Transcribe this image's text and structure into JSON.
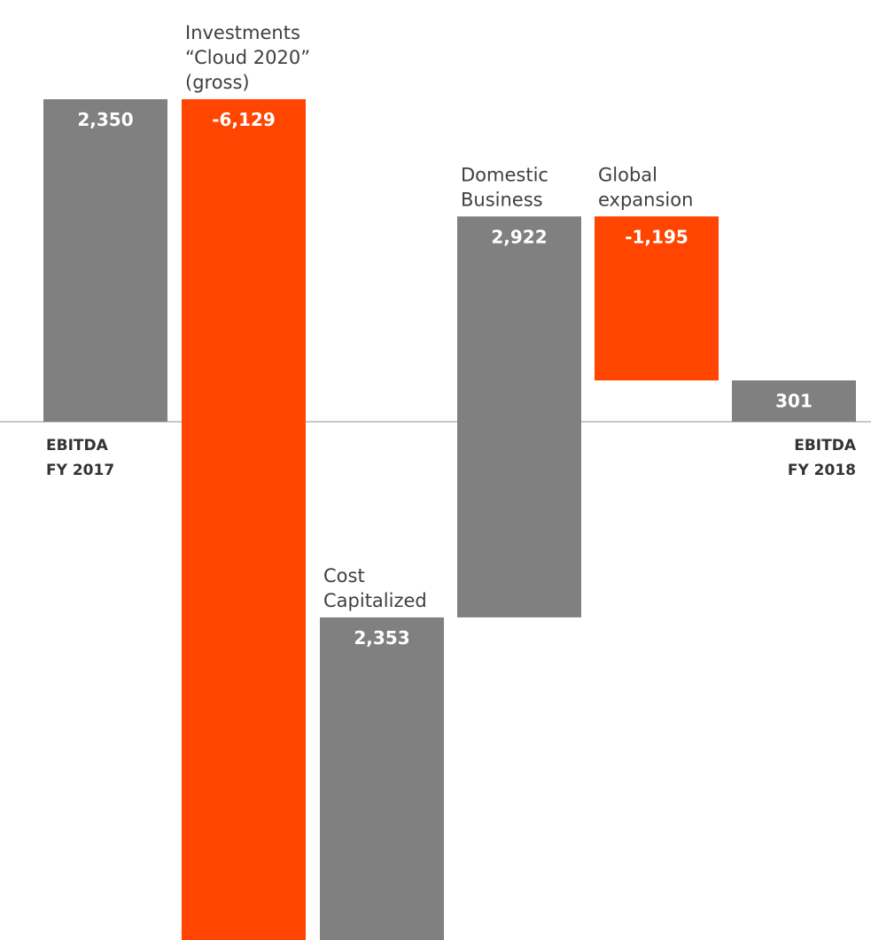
{
  "chart_data": {
    "type": "bar",
    "subtype": "waterfall",
    "categories": [
      "EBITDA FY 2017",
      "Investments “Cloud 2020” (gross)",
      "Cost Capitalized",
      "Domestic Business",
      "Global expansion",
      "EBITDA FY 2018"
    ],
    "values": [
      2350,
      -6129,
      2353,
      2922,
      -1195,
      301
    ],
    "value_labels": [
      "2,350",
      "-6,129",
      "2,353",
      "2,922",
      "-1,195",
      "301"
    ],
    "category_labels": [
      {
        "lines": [
          "EBITDA",
          "FY 2017"
        ]
      },
      {
        "lines": [
          "Investments",
          "“Cloud 2020”",
          "(gross)"
        ]
      },
      {
        "lines": [
          "Cost",
          "Capitalized"
        ]
      },
      {
        "lines": [
          "Domestic",
          "Business"
        ]
      },
      {
        "lines": [
          "Global",
          "expansion"
        ]
      },
      {
        "lines": [
          "EBITDA",
          "FY 2018"
        ]
      }
    ],
    "bar_kinds": [
      "total",
      "delta",
      "delta",
      "delta",
      "delta",
      "total"
    ],
    "ylim": [
      -3779,
      2350
    ],
    "title": "",
    "xlabel": "",
    "ylabel": "",
    "grid": false,
    "colors": {
      "positive": "#808080",
      "negative": "#ff4500",
      "total": "#808080",
      "baseline": "#c8c8c8",
      "value_text": "#ffffff",
      "label_text": "#3f3f3f"
    }
  }
}
